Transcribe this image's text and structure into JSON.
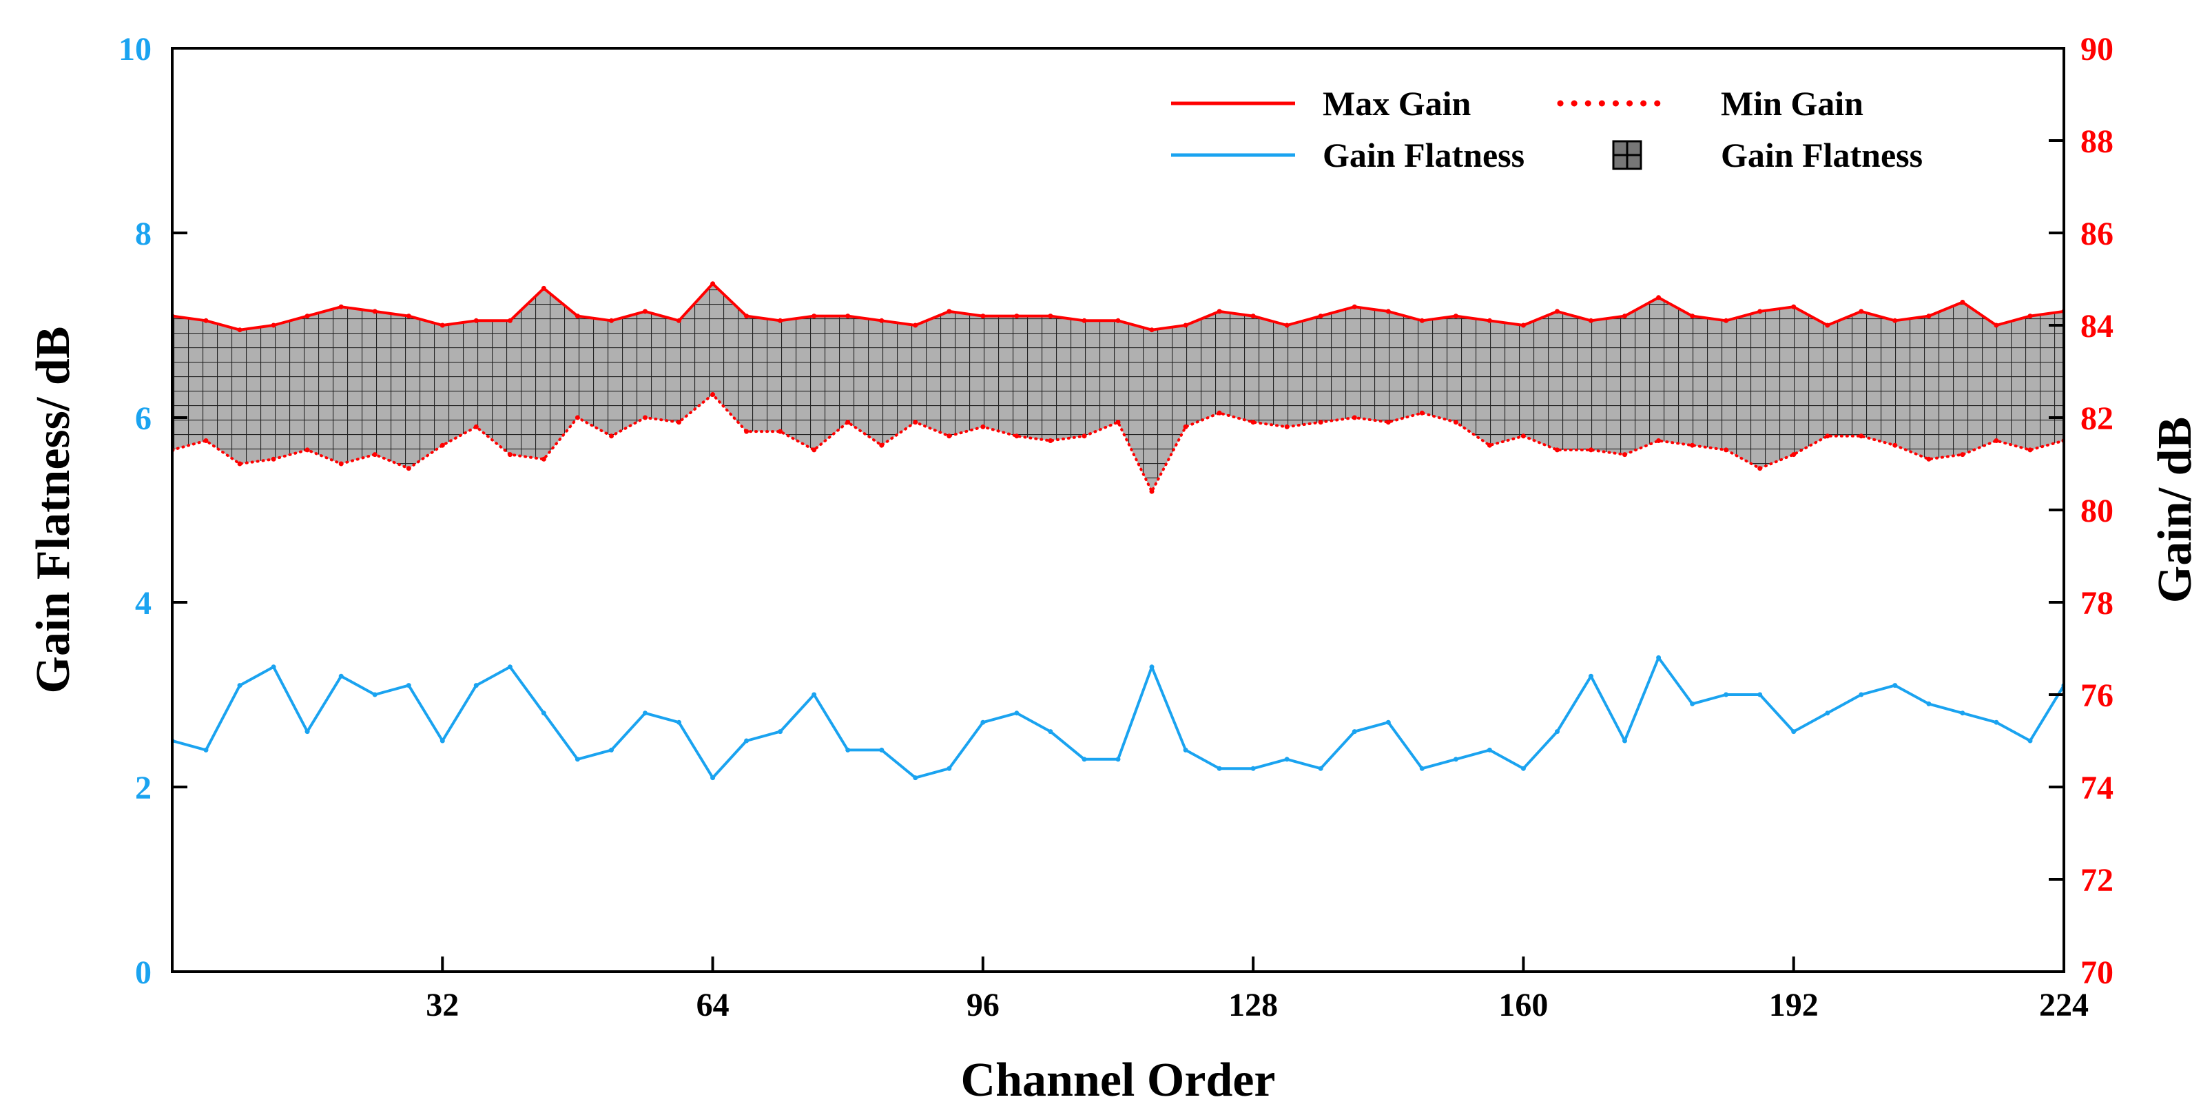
{
  "chart_data": {
    "type": "line",
    "title": "",
    "xlabel": "Channel Order",
    "ylabel_left": "Gain Flatness/ dB",
    "ylabel_right": "Gain/ dB",
    "xlim": [
      0,
      224
    ],
    "ylim_left": [
      0,
      10
    ],
    "ylim_right": [
      70,
      90
    ],
    "x_ticks": [
      32,
      64,
      96,
      128,
      160,
      192,
      224
    ],
    "y_ticks_left": [
      0,
      2,
      4,
      6,
      8,
      10
    ],
    "y_ticks_right": [
      70,
      72,
      74,
      76,
      78,
      80,
      82,
      84,
      86,
      88,
      90
    ],
    "x_tick_labels": [
      "32",
      "64",
      "96",
      "128",
      "160",
      "192",
      "224"
    ],
    "y_tick_labels_left": [
      "0",
      "2",
      "4",
      "6",
      "8",
      "10"
    ],
    "y_tick_labels_right": [
      "70",
      "72",
      "74",
      "76",
      "78",
      "80",
      "82",
      "84",
      "86",
      "88",
      "90"
    ],
    "legend": {
      "placement": "top-right",
      "entries": [
        "Max Gain",
        "Min Gain",
        "Gain Flatness",
        "Gain Flatness"
      ]
    },
    "colors": {
      "max_gain": "#ff0000",
      "min_gain": "#ff0000",
      "flatness": "#1aa3f0",
      "fill": "#b0b0b0",
      "grid_fill": "#222222",
      "left_axis": "#1aa3f0",
      "right_axis": "#ff0000"
    },
    "series": [
      {
        "name": "Max Gain",
        "axis": "right",
        "style": "solid",
        "x": [
          0,
          4,
          8,
          12,
          16,
          20,
          24,
          28,
          32,
          36,
          40,
          44,
          48,
          52,
          56,
          60,
          64,
          68,
          72,
          76,
          80,
          84,
          88,
          92,
          96,
          100,
          104,
          108,
          112,
          116,
          120,
          124,
          128,
          132,
          136,
          140,
          144,
          148,
          152,
          156,
          160,
          164,
          168,
          172,
          176,
          180,
          184,
          188,
          192,
          196,
          200,
          204,
          208,
          212,
          216,
          220,
          224
        ],
        "values": [
          84.2,
          84.1,
          83.9,
          84.0,
          84.2,
          84.4,
          84.3,
          84.2,
          84.0,
          84.1,
          84.1,
          84.8,
          84.2,
          84.1,
          84.3,
          84.1,
          84.9,
          84.2,
          84.1,
          84.2,
          84.2,
          84.1,
          84.0,
          84.3,
          84.2,
          84.2,
          84.2,
          84.1,
          84.1,
          83.9,
          84.0,
          84.3,
          84.2,
          84.0,
          84.2,
          84.4,
          84.3,
          84.1,
          84.2,
          84.1,
          84.0,
          84.3,
          84.1,
          84.2,
          84.6,
          84.2,
          84.1,
          84.3,
          84.4,
          84.0,
          84.3,
          84.1,
          84.2,
          84.5,
          84.0,
          84.2,
          84.3
        ]
      },
      {
        "name": "Min Gain",
        "axis": "right",
        "style": "dotted",
        "x": [
          0,
          4,
          8,
          12,
          16,
          20,
          24,
          28,
          32,
          36,
          40,
          44,
          48,
          52,
          56,
          60,
          64,
          68,
          72,
          76,
          80,
          84,
          88,
          92,
          96,
          100,
          104,
          108,
          112,
          116,
          120,
          124,
          128,
          132,
          136,
          140,
          144,
          148,
          152,
          156,
          160,
          164,
          168,
          172,
          176,
          180,
          184,
          188,
          192,
          196,
          200,
          204,
          208,
          212,
          216,
          220,
          224
        ],
        "values": [
          81.3,
          81.5,
          81.0,
          81.1,
          81.3,
          81.0,
          81.2,
          80.9,
          81.4,
          81.8,
          81.2,
          81.1,
          82.0,
          81.6,
          82.0,
          81.9,
          82.5,
          81.7,
          81.7,
          81.3,
          81.9,
          81.4,
          81.9,
          81.6,
          81.8,
          81.6,
          81.5,
          81.6,
          81.9,
          80.4,
          81.8,
          82.1,
          81.9,
          81.8,
          81.9,
          82.0,
          81.9,
          82.1,
          81.9,
          81.4,
          81.6,
          81.3,
          81.3,
          81.2,
          81.5,
          81.4,
          81.3,
          80.9,
          81.2,
          81.6,
          81.6,
          81.4,
          81.1,
          81.2,
          81.5,
          81.3,
          81.5
        ]
      },
      {
        "name": "Gain Flatness",
        "axis": "left",
        "style": "solid",
        "x": [
          0,
          4,
          8,
          12,
          16,
          20,
          24,
          28,
          32,
          36,
          40,
          44,
          48,
          52,
          56,
          60,
          64,
          68,
          72,
          76,
          80,
          84,
          88,
          92,
          96,
          100,
          104,
          108,
          112,
          116,
          120,
          124,
          128,
          132,
          136,
          140,
          144,
          148,
          152,
          156,
          160,
          164,
          168,
          172,
          176,
          180,
          184,
          188,
          192,
          196,
          200,
          204,
          208,
          212,
          216,
          220,
          224
        ],
        "values": [
          2.5,
          2.4,
          3.1,
          3.3,
          2.6,
          3.2,
          3.0,
          3.1,
          2.5,
          3.1,
          3.3,
          2.8,
          2.3,
          2.4,
          2.8,
          2.7,
          2.1,
          2.5,
          2.6,
          3.0,
          2.4,
          2.4,
          2.1,
          2.2,
          2.7,
          2.8,
          2.6,
          2.3,
          2.3,
          3.3,
          2.4,
          2.2,
          2.2,
          2.3,
          2.2,
          2.6,
          2.7,
          2.2,
          2.3,
          2.4,
          2.2,
          2.6,
          3.2,
          2.5,
          3.4,
          2.9,
          3.0,
          3.0,
          2.6,
          2.8,
          3.0,
          3.1,
          2.9,
          2.8,
          2.7,
          2.5,
          3.1
        ]
      }
    ]
  }
}
